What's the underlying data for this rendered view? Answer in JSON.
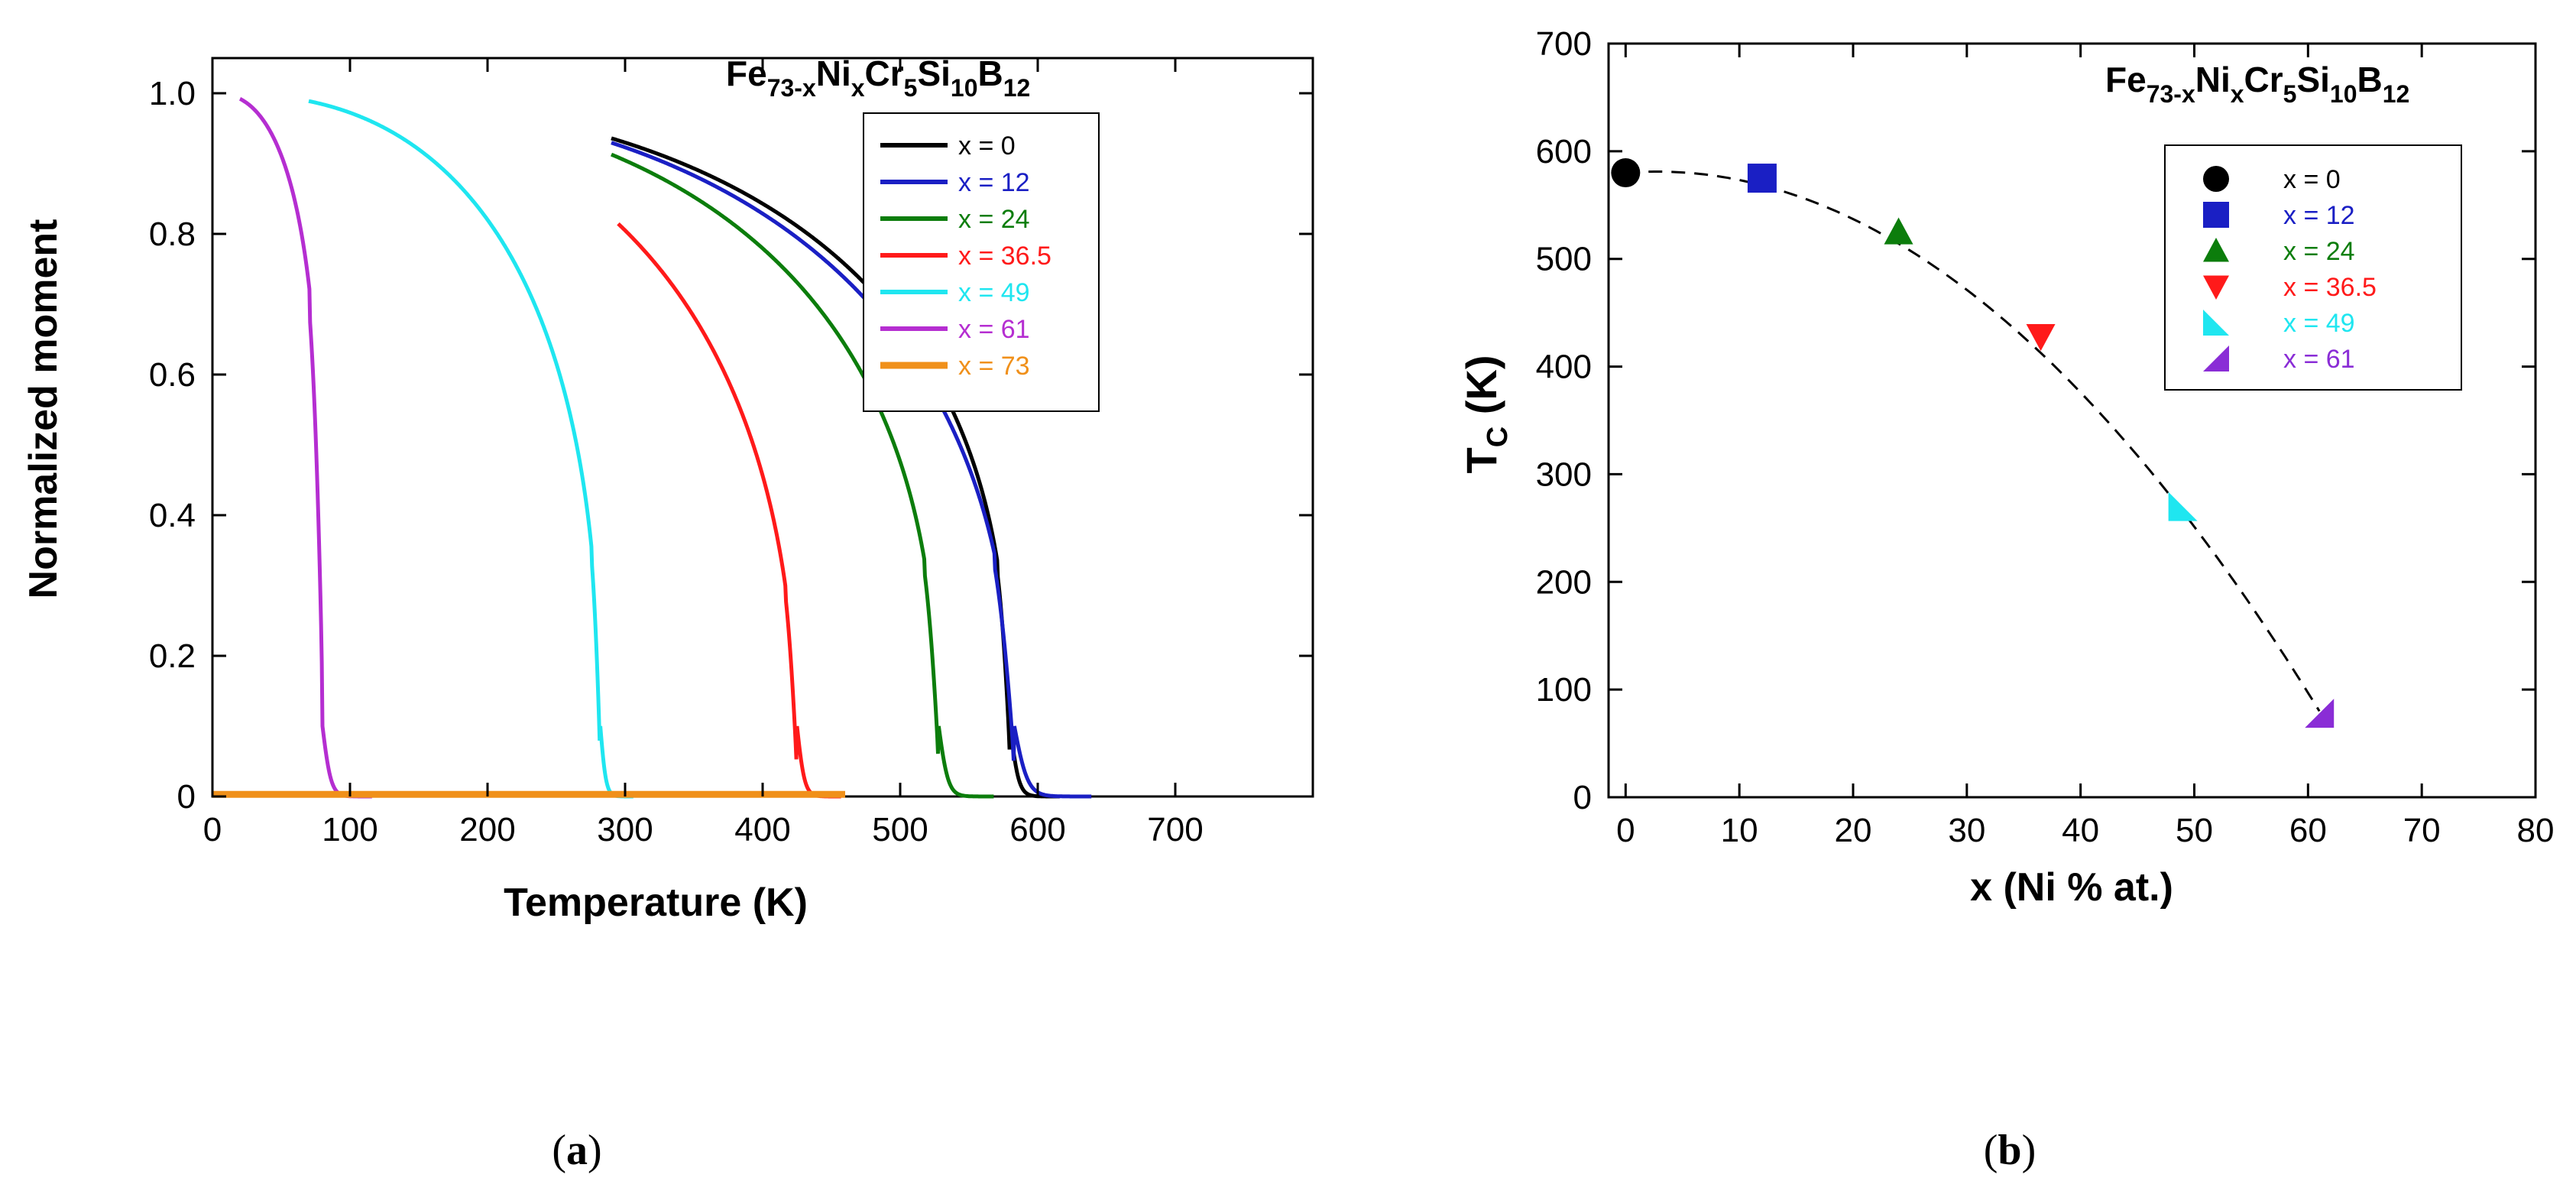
{
  "chart_data": [
    {
      "type": "line",
      "panel_label": "a",
      "formula": {
        "base": "Fe",
        "sub1": "73-x",
        "el2": "Ni",
        "sub2": "x",
        "el3": "Cr",
        "sub3": "5",
        "el4": "Si",
        "sub4": "10",
        "el5": "B",
        "sub5": "12"
      },
      "xlabel": "Temperature (K)",
      "ylabel": "Normalized moment",
      "xlim": [
        0,
        800
      ],
      "ylim": [
        0,
        1.05
      ],
      "xticks": [
        0,
        100,
        200,
        300,
        400,
        500,
        600,
        700
      ],
      "yticks": [
        {
          "v": 0,
          "label": "0"
        },
        {
          "v": 0.2,
          "label": "0.2"
        },
        {
          "v": 0.4,
          "label": "0.4"
        },
        {
          "v": 0.6,
          "label": "0.6"
        },
        {
          "v": 0.8,
          "label": "0.8"
        },
        {
          "v": 1.0,
          "label": "1.0"
        }
      ],
      "grid": false,
      "legend_position": "right",
      "series": [
        {
          "name": "x = 0",
          "color": "#000000",
          "tc": 580,
          "tstart": 290,
          "width": 9,
          "beta": 0.34
        },
        {
          "name": "x = 12",
          "color": "#1a1fc4",
          "tc": 583,
          "tstart": 290,
          "width": 14,
          "beta": 0.38
        },
        {
          "name": "x = 24",
          "color": "#0c7d0c",
          "tc": 528,
          "tstart": 290,
          "width": 10,
          "beta": 0.36
        },
        {
          "name": "x = 36.5",
          "color": "#ff1a1a",
          "tc": 425,
          "tstart": 295,
          "width": 8,
          "beta": 0.4
        },
        {
          "name": "x = 49",
          "color": "#1fe6f0",
          "tc": 282,
          "tstart": 70,
          "width": 6,
          "beta": 0.36
        },
        {
          "name": "x = 61",
          "color": "#b52ed1",
          "tc": 80,
          "tstart": 20,
          "width": 9,
          "beta": 0.25
        },
        {
          "name": "x = 73",
          "color": "#f0901a",
          "tc": 0,
          "tstart": 0,
          "tend": 460,
          "flat": true
        }
      ]
    },
    {
      "type": "scatter",
      "panel_label": "b",
      "formula": {
        "base": "Fe",
        "sub1": "73-x",
        "el2": "Ni",
        "sub2": "x",
        "el3": "Cr",
        "sub3": "5",
        "el4": "Si",
        "sub4": "10",
        "el5": "B",
        "sub5": "12"
      },
      "xlabel": "x (Ni % at.)",
      "ylabel_main": "T",
      "ylabel_sub": "C",
      "ylabel_unit": " (K)",
      "xlim": [
        -1.5,
        80
      ],
      "ylim": [
        0,
        700
      ],
      "xticks": [
        0,
        10,
        20,
        30,
        40,
        50,
        60,
        70,
        80
      ],
      "yticks": [
        0,
        100,
        200,
        300,
        400,
        500,
        600,
        700
      ],
      "grid": false,
      "legend_position": "upper-right",
      "points": [
        {
          "name": "x = 0",
          "x": 0,
          "y": 580,
          "color": "#000000",
          "marker": "circle"
        },
        {
          "name": "x = 12",
          "x": 12,
          "y": 575,
          "color": "#1a1fc4",
          "marker": "square"
        },
        {
          "name": "x = 24",
          "x": 24,
          "y": 525,
          "color": "#0c7d0c",
          "marker": "triangle-up"
        },
        {
          "name": "x = 36.5",
          "x": 36.5,
          "y": 428,
          "color": "#ff1a1a",
          "marker": "triangle-down"
        },
        {
          "name": "x = 49",
          "x": 49,
          "y": 270,
          "color": "#1fe6f0",
          "marker": "triangle-right"
        },
        {
          "name": "x = 61",
          "x": 61,
          "y": 78,
          "color": "#8a2dd6",
          "marker": "triangle-left"
        }
      ],
      "fit_curve": {
        "a": 580,
        "b": 0.8,
        "c": -0.1475,
        "x_from": 0,
        "x_to": 61
      }
    }
  ],
  "captions": {
    "a_open": "(",
    "a_letter": "a",
    "a_close": ")",
    "b_open": "(",
    "b_letter": "b",
    "b_close": ")"
  }
}
